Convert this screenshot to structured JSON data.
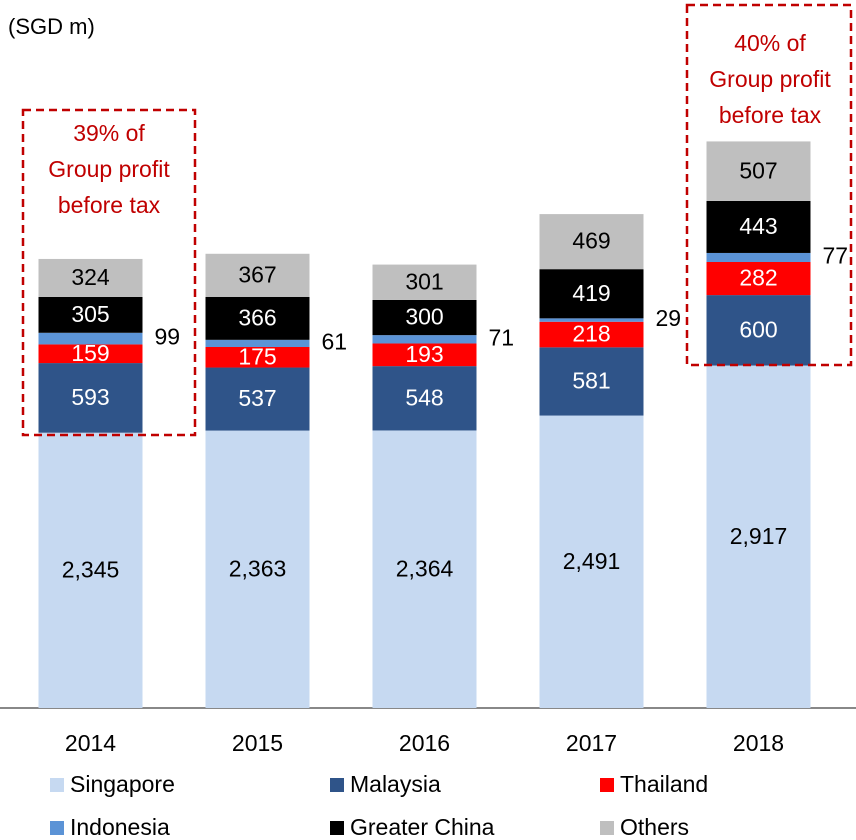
{
  "chart_data": {
    "type": "bar",
    "stacked": true,
    "title": "(SGD m)",
    "categories": [
      "2014",
      "2015",
      "2016",
      "2017",
      "2018"
    ],
    "ylim": [
      0,
      5000
    ],
    "legend": "bottom",
    "series": [
      {
        "name": "Singapore",
        "color": "#c6d9f1",
        "values": [
          2345,
          2363,
          2364,
          2491,
          2917
        ],
        "value_labels": [
          "2,345",
          "2,363",
          "2,364",
          "2,491",
          "2,917"
        ]
      },
      {
        "name": "Malaysia",
        "color": "#2f5489",
        "values": [
          593,
          537,
          548,
          581,
          600
        ]
      },
      {
        "name": "Thailand",
        "color": "#ff0000",
        "values": [
          159,
          175,
          193,
          218,
          282
        ]
      },
      {
        "name": "Indonesia",
        "color": "#5b93d6",
        "values": [
          99,
          61,
          71,
          29,
          77
        ],
        "label_position": "outside"
      },
      {
        "name": "Greater China",
        "color": "#000000",
        "values": [
          305,
          366,
          300,
          419,
          443
        ]
      },
      {
        "name": "Others",
        "color": "#bfbfbf",
        "values": [
          324,
          367,
          301,
          469,
          507
        ]
      }
    ],
    "annotations": [
      {
        "text": [
          "39% of",
          "Group profit",
          "before tax"
        ],
        "color": "#c00000"
      },
      {
        "text": [
          "40% of",
          "Group profit",
          "before tax"
        ],
        "color": "#c00000"
      }
    ]
  }
}
